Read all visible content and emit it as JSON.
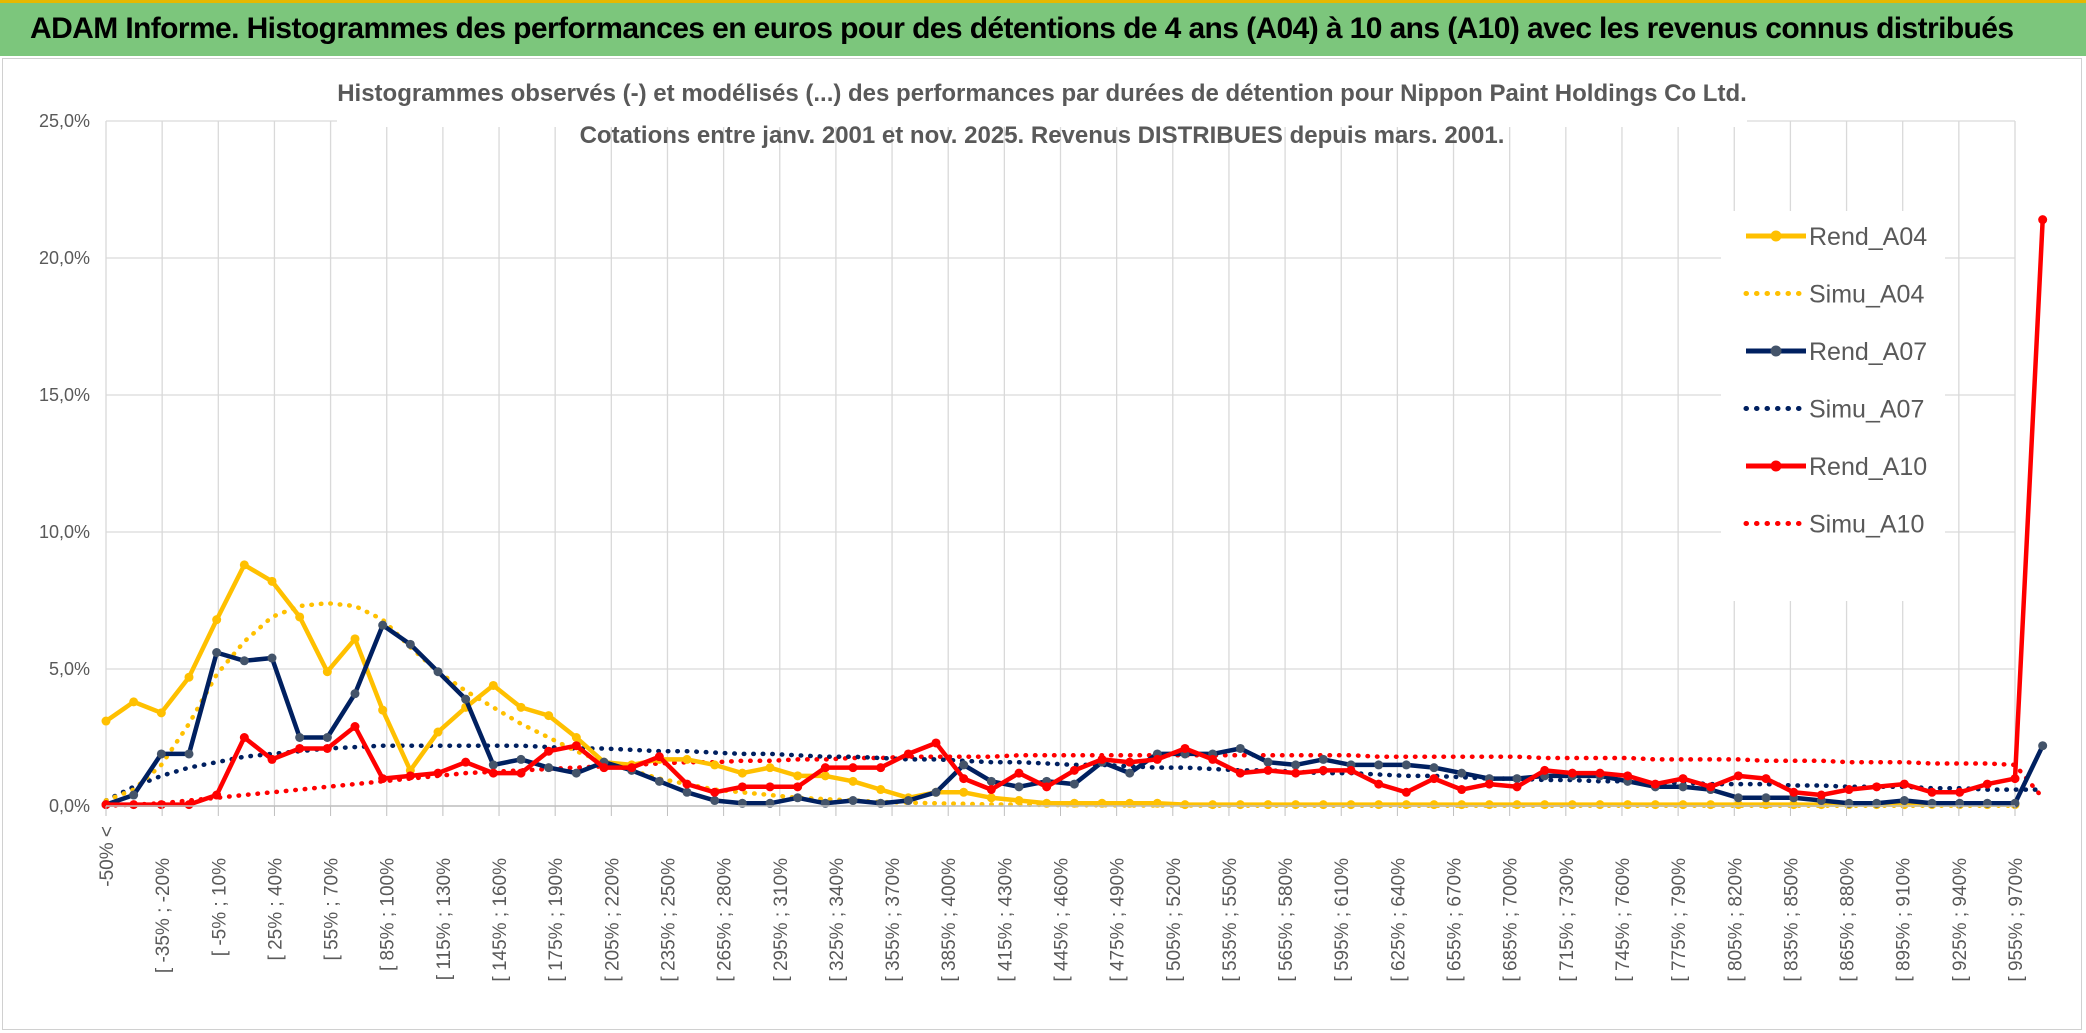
{
  "banner": {
    "title": "ADAM Informe. Histogrammes des performances en euros pour des détentions de 4 ans (A04) à 10 ans (A10) avec les revenus connus distribués"
  },
  "colors": {
    "banner_bg": "#7cc67c",
    "A04": "#ffc000",
    "A07": "#002060",
    "A10": "#ff0000",
    "grid": "#d9d9d9",
    "marker_A07": "#44546a"
  },
  "chart_data": {
    "type": "line",
    "title": "Histogrammes observés (-) et modélisés (...) des performances par durées de détention pour Nippon Paint Holdings Co Ltd.",
    "subtitle": "Cotations entre janv. 2001 et nov. 2025. Revenus DISTRIBUES depuis mars. 2001.",
    "xlabel": "",
    "ylabel": "",
    "ylim": [
      0,
      25
    ],
    "yticks": [
      "0,0%",
      "5,0%",
      "10,0%",
      "15,0%",
      "20,0%",
      "25,0%"
    ],
    "grid": true,
    "legend_position": "right",
    "x_tick_labels": [
      "-50% <",
      "[ -35% ; -20%",
      "[ -5% ; 10%",
      "[ 25% ; 40%",
      "[ 55% ; 70%",
      "[ 85% ; 100%",
      "[ 115% ; 130%",
      "[ 145% ; 160%",
      "[ 175% ; 190%",
      "[ 205% ; 220%",
      "[ 235% ; 250%",
      "[ 265% ; 280%",
      "[ 295% ; 310%",
      "[ 325% ; 340%",
      "[ 355% ; 370%",
      "[ 385% ; 400%",
      "[ 415% ; 430%",
      "[ 445% ; 460%",
      "[ 475% ; 490%",
      "[ 505% ; 520%",
      "[ 535% ; 550%",
      "[ 565% ; 580%",
      "[ 595% ; 610%",
      "[ 625% ; 640%",
      "[ 655% ; 670%",
      "[ 685% ; 700%",
      "[ 715% ; 730%",
      "[ 745% ; 760%",
      "[ 775% ; 790%",
      "[ 805% ; 820%",
      "[ 835% ; 850%",
      "[ 865% ; 880%",
      "[ 895% ; 910%",
      "[ 925% ; 940%",
      "[ 955% ; 970%"
    ],
    "series": [
      {
        "name": "Rend_A04",
        "style": "solid",
        "color": "#ffc000",
        "values": [
          3.1,
          3.8,
          3.4,
          4.7,
          6.8,
          8.8,
          8.2,
          6.9,
          4.9,
          6.1,
          3.5,
          1.3,
          2.7,
          3.6,
          4.4,
          3.6,
          3.3,
          2.5,
          1.6,
          1.5,
          1.7,
          1.7,
          1.5,
          1.2,
          1.4,
          1.1,
          1.1,
          0.9,
          0.6,
          0.3,
          0.5,
          0.5,
          0.3,
          0.2,
          0.1,
          0.1,
          0.1,
          0.1,
          0.1,
          0.05,
          0.05,
          0.05,
          0.05,
          0.05,
          0.05,
          0.05,
          0.05,
          0.05,
          0.05,
          0.05,
          0.05,
          0.05,
          0.05,
          0.05,
          0.05,
          0.05,
          0.05,
          0.05,
          0.05,
          0.05,
          0.05,
          0.05,
          0.05,
          0.05,
          0.05,
          0.05,
          0.05,
          0.05,
          0.05,
          0.05
        ]
      },
      {
        "name": "Simu_A04",
        "style": "dotted",
        "color": "#ffc000",
        "values": [
          0.2,
          0.6,
          1.5,
          3.0,
          4.8,
          6.0,
          6.9,
          7.3,
          7.4,
          7.3,
          6.8,
          5.8,
          4.9,
          4.2,
          3.6,
          3.0,
          2.5,
          2.0,
          1.6,
          1.3,
          1.0,
          0.8,
          0.6,
          0.5,
          0.4,
          0.3,
          0.25,
          0.2,
          0.15,
          0.12,
          0.1,
          0.08,
          0.06,
          0.05,
          0.04,
          0.03,
          0.03,
          0.02,
          0.02,
          0.02,
          0.01,
          0.01,
          0.01,
          0.01,
          0.01,
          0.01,
          0.01,
          0.01,
          0.01,
          0.01,
          0.01,
          0.01,
          0.01,
          0.01,
          0.01,
          0.01,
          0.01,
          0.01,
          0.01,
          0.01,
          0.01,
          0.01,
          0.01,
          0.01,
          0.01,
          0.01,
          0.01,
          0.01,
          0.01,
          0.01
        ]
      },
      {
        "name": "Rend_A07",
        "style": "solid",
        "color": "#002060",
        "values": [
          0.05,
          0.4,
          1.9,
          1.9,
          5.6,
          5.3,
          5.4,
          2.5,
          2.5,
          4.1,
          6.6,
          5.9,
          4.9,
          3.9,
          1.5,
          1.7,
          1.4,
          1.2,
          1.6,
          1.3,
          0.9,
          0.5,
          0.2,
          0.1,
          0.1,
          0.3,
          0.1,
          0.2,
          0.1,
          0.2,
          0.5,
          1.5,
          0.9,
          0.7,
          0.9,
          0.8,
          1.6,
          1.2,
          1.9,
          1.9,
          1.9,
          2.1,
          1.6,
          1.5,
          1.7,
          1.5,
          1.5,
          1.5,
          1.4,
          1.2,
          1.0,
          1.0,
          1.1,
          1.1,
          1.1,
          0.9,
          0.7,
          0.7,
          0.6,
          0.3,
          0.3,
          0.3,
          0.2,
          0.1,
          0.1,
          0.2,
          0.1,
          0.1,
          0.1,
          0.1,
          2.2
        ]
      },
      {
        "name": "Simu_A07",
        "style": "dotted",
        "color": "#002060",
        "values": [
          0.2,
          0.7,
          1.1,
          1.4,
          1.6,
          1.8,
          1.9,
          2.0,
          2.1,
          2.15,
          2.2,
          2.2,
          2.2,
          2.2,
          2.2,
          2.2,
          2.15,
          2.1,
          2.1,
          2.05,
          2.0,
          2.0,
          1.95,
          1.9,
          1.9,
          1.85,
          1.8,
          1.8,
          1.75,
          1.7,
          1.7,
          1.65,
          1.6,
          1.6,
          1.55,
          1.5,
          1.5,
          1.45,
          1.4,
          1.4,
          1.35,
          1.3,
          1.3,
          1.25,
          1.2,
          1.2,
          1.15,
          1.1,
          1.1,
          1.05,
          1.0,
          1.0,
          0.95,
          0.95,
          0.9,
          0.9,
          0.85,
          0.85,
          0.8,
          0.8,
          0.8,
          0.75,
          0.75,
          0.7,
          0.7,
          0.7,
          0.65,
          0.65,
          0.6,
          0.6,
          0.6
        ]
      },
      {
        "name": "Rend_A10",
        "style": "solid",
        "color": "#ff0000",
        "values": [
          0.05,
          0.05,
          0.05,
          0.05,
          0.4,
          2.5,
          1.7,
          2.1,
          2.1,
          2.9,
          1.0,
          1.1,
          1.2,
          1.6,
          1.2,
          1.2,
          2.0,
          2.2,
          1.4,
          1.4,
          1.8,
          0.8,
          0.5,
          0.7,
          0.7,
          0.7,
          1.4,
          1.4,
          1.4,
          1.9,
          2.3,
          1.0,
          0.6,
          1.2,
          0.7,
          1.3,
          1.7,
          1.6,
          1.7,
          2.1,
          1.7,
          1.2,
          1.3,
          1.2,
          1.3,
          1.3,
          0.8,
          0.5,
          1.0,
          0.6,
          0.8,
          0.7,
          1.3,
          1.2,
          1.2,
          1.1,
          0.8,
          1.0,
          0.7,
          1.1,
          1.0,
          0.5,
          0.4,
          0.6,
          0.7,
          0.8,
          0.5,
          0.5,
          0.8,
          1.0,
          21.4
        ]
      },
      {
        "name": "Simu_A10",
        "style": "dotted",
        "color": "#ff0000",
        "values": [
          0.01,
          0.05,
          0.1,
          0.2,
          0.3,
          0.4,
          0.5,
          0.6,
          0.7,
          0.8,
          0.9,
          1.0,
          1.1,
          1.2,
          1.25,
          1.3,
          1.35,
          1.4,
          1.45,
          1.5,
          1.55,
          1.6,
          1.6,
          1.65,
          1.65,
          1.7,
          1.7,
          1.75,
          1.75,
          1.8,
          1.8,
          1.8,
          1.8,
          1.85,
          1.85,
          1.85,
          1.85,
          1.85,
          1.85,
          1.85,
          1.85,
          1.85,
          1.85,
          1.85,
          1.85,
          1.85,
          1.8,
          1.8,
          1.8,
          1.8,
          1.8,
          1.8,
          1.75,
          1.75,
          1.75,
          1.75,
          1.7,
          1.7,
          1.7,
          1.7,
          1.65,
          1.65,
          1.65,
          1.6,
          1.6,
          1.6,
          1.55,
          1.55,
          1.55,
          1.5,
          0.3
        ]
      }
    ]
  }
}
